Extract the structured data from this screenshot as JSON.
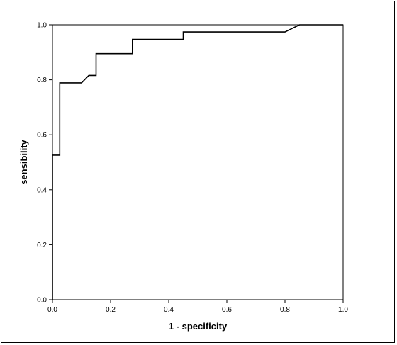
{
  "chart_data": {
    "type": "line",
    "title": "",
    "xlabel": "1 - specificity",
    "ylabel": "sensibility",
    "xlim": [
      0.0,
      1.0
    ],
    "ylim": [
      0.0,
      1.0
    ],
    "x_ticks": [
      "0.0",
      "0.2",
      "0.4",
      "0.6",
      "0.8",
      "1.0"
    ],
    "y_ticks": [
      "0.0",
      "0.2",
      "0.4",
      "0.6",
      "0.8",
      "1.0"
    ],
    "grid": false,
    "legend": "none",
    "reference_line": {
      "from": [
        0,
        0
      ],
      "to": [
        1,
        1
      ],
      "visible": false
    },
    "series": [
      {
        "points": [
          [
            0.0,
            0.0
          ],
          [
            0.0,
            0.526
          ],
          [
            0.025,
            0.526
          ],
          [
            0.025,
            0.789
          ],
          [
            0.1,
            0.789
          ],
          [
            0.125,
            0.816
          ],
          [
            0.15,
            0.816
          ],
          [
            0.15,
            0.895
          ],
          [
            0.275,
            0.895
          ],
          [
            0.275,
            0.947
          ],
          [
            0.45,
            0.947
          ],
          [
            0.45,
            0.974
          ],
          [
            0.8,
            0.974
          ],
          [
            0.85,
            1.0
          ],
          [
            1.0,
            1.0
          ]
        ],
        "color": "#000000"
      }
    ]
  }
}
